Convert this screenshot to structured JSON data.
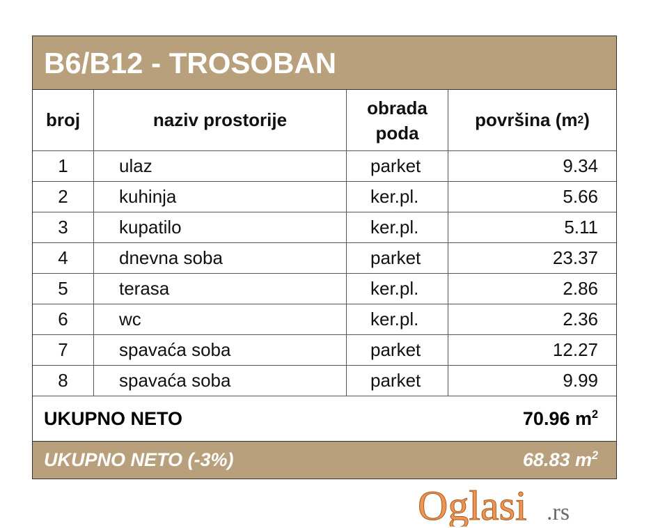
{
  "title": "B6/B12 - TROSOBAN",
  "headers": {
    "broj": "broj",
    "naziv": "naziv prostorije",
    "obrada": "obrada poda",
    "povrsina": "površina (m",
    "povrsina_sup": "2",
    "povrsina_close": ")"
  },
  "rows": [
    {
      "broj": "1",
      "naziv": "ulaz",
      "obrada": "parket",
      "povrsina": "9.34"
    },
    {
      "broj": "2",
      "naziv": "kuhinja",
      "obrada": "ker.pl.",
      "povrsina": "5.66"
    },
    {
      "broj": "3",
      "naziv": "kupatilo",
      "obrada": "ker.pl.",
      "povrsina": "5.11"
    },
    {
      "broj": "4",
      "naziv": "dnevna soba",
      "obrada": "parket",
      "povrsina": "23.37"
    },
    {
      "broj": "5",
      "naziv": "terasa",
      "obrada": "ker.pl.",
      "povrsina": "2.86"
    },
    {
      "broj": "6",
      "naziv": "wc",
      "obrada": "ker.pl.",
      "povrsina": "2.36"
    },
    {
      "broj": "7",
      "naziv": "spavaća soba",
      "obrada": "parket",
      "povrsina": "12.27"
    },
    {
      "broj": "8",
      "naziv": "spavaća soba",
      "obrada": "parket",
      "povrsina": "9.99"
    }
  ],
  "total": {
    "label": "UKUPNO NETO",
    "value": "70.96 m",
    "unit_sup": "2"
  },
  "total_reduced": {
    "label": "UKUPNO NETO (-3%)",
    "value": "68.83 m",
    "unit_sup": "2"
  },
  "watermark": {
    "text": "Oglasi",
    "suffix": ".rs"
  },
  "colors": {
    "header_bg": "#b9a07c",
    "watermark": "#eb8232"
  }
}
